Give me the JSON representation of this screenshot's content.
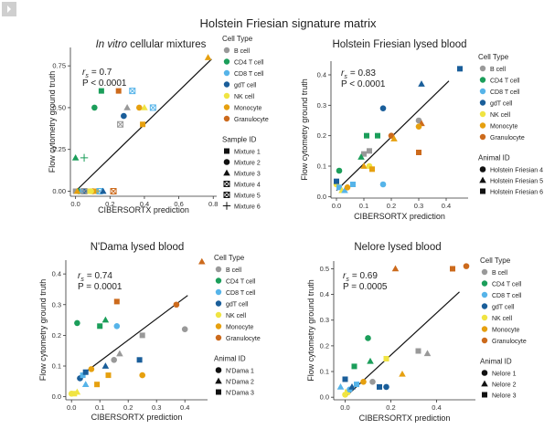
{
  "figure_title": "Holstein Friesian signature matrix",
  "legend_labels": {
    "cell_type": "Cell Type",
    "sample_id": "Sample ID",
    "animal_id": "Animal ID"
  },
  "cell_types": [
    {
      "name": "B cell",
      "color": "#999999"
    },
    {
      "name": "CD4 T cell",
      "color": "#1b9e5a"
    },
    {
      "name": "CD8 T cell",
      "color": "#56b4e9"
    },
    {
      "name": "gdT cell",
      "color": "#1a5e9a"
    },
    {
      "name": "NK cell",
      "color": "#f0e442"
    },
    {
      "name": "Monocyte",
      "color": "#e6a00f"
    },
    {
      "name": "Granulocyte",
      "color": "#cc6a1c"
    }
  ],
  "chart_data": [
    {
      "type": "scatter",
      "title": "In vitro cellular mixtures",
      "title_italic_part": "In vitro",
      "xlabel": "CIBERSORTX prediction",
      "ylabel": "Flow cytometry ground truth",
      "xlim": [
        -0.03,
        0.82
      ],
      "ylim": [
        -0.03,
        0.86
      ],
      "xticks": [
        0.0,
        0.2,
        0.4,
        0.6,
        0.8
      ],
      "xticklabels": [
        "0.0",
        "0.2",
        "0.4",
        "0.6",
        "0.8"
      ],
      "yticks": [
        0.0,
        0.25,
        0.5,
        0.75
      ],
      "yticklabels": [
        "0.00",
        "0.25",
        "0.50",
        "0.75"
      ],
      "stat_rs": "= 0.7",
      "stat_p": "P < 0.0001",
      "fit_line": [
        [
          0.0,
          0.0
        ],
        [
          0.79,
          0.79
        ]
      ],
      "shape_legend_title": "Sample ID",
      "shape_legend": [
        {
          "label": "Mixture 1",
          "shape": "square"
        },
        {
          "label": "Mixture 2",
          "shape": "circle"
        },
        {
          "label": "Mixture 3",
          "shape": "triangle"
        },
        {
          "label": "Mixture 4",
          "shape": "boxx"
        },
        {
          "label": "Mixture 5",
          "shape": "diamondsq"
        },
        {
          "label": "Mixture 6",
          "shape": "plus"
        }
      ],
      "points": [
        {
          "x": 0.0,
          "y": 0.0,
          "cell": "B cell",
          "shape": "square"
        },
        {
          "x": 0.02,
          "y": 0.0,
          "cell": "CD4 T cell",
          "shape": "circle"
        },
        {
          "x": 0.04,
          "y": 0.0,
          "cell": "CD8 T cell",
          "shape": "square"
        },
        {
          "x": 0.06,
          "y": 0.0,
          "cell": "gdT cell",
          "shape": "circle"
        },
        {
          "x": 0.08,
          "y": 0.0,
          "cell": "NK cell",
          "shape": "square"
        },
        {
          "x": 0.1,
          "y": 0.0,
          "cell": "Granulocyte",
          "shape": "circle"
        },
        {
          "x": 0.12,
          "y": 0.0,
          "cell": "Monocyte",
          "shape": "square"
        },
        {
          "x": 0.14,
          "y": 0.0,
          "cell": "CD8 T cell",
          "shape": "boxx"
        },
        {
          "x": 0.16,
          "y": 0.0,
          "cell": "gdT cell",
          "shape": "triangle"
        },
        {
          "x": 0.01,
          "y": 0.0,
          "cell": "Monocyte",
          "shape": "triangle"
        },
        {
          "x": 0.05,
          "y": 0.0,
          "cell": "B cell",
          "shape": "diamondsq"
        },
        {
          "x": 0.09,
          "y": 0.0,
          "cell": "NK cell",
          "shape": "circle"
        },
        {
          "x": 0.22,
          "y": 0.0,
          "cell": "Granulocyte",
          "shape": "boxx"
        },
        {
          "x": 0.0,
          "y": 0.2,
          "cell": "CD4 T cell",
          "shape": "triangle"
        },
        {
          "x": 0.05,
          "y": 0.2,
          "cell": "CD4 T cell",
          "shape": "plus"
        },
        {
          "x": 0.11,
          "y": 0.5,
          "cell": "CD4 T cell",
          "shape": "circle"
        },
        {
          "x": 0.15,
          "y": 0.6,
          "cell": "CD4 T cell",
          "shape": "square"
        },
        {
          "x": 0.25,
          "y": 0.6,
          "cell": "Granulocyte",
          "shape": "square"
        },
        {
          "x": 0.33,
          "y": 0.6,
          "cell": "CD8 T cell",
          "shape": "boxx"
        },
        {
          "x": 0.28,
          "y": 0.45,
          "cell": "gdT cell",
          "shape": "circle"
        },
        {
          "x": 0.3,
          "y": 0.5,
          "cell": "B cell",
          "shape": "triangle"
        },
        {
          "x": 0.37,
          "y": 0.5,
          "cell": "Monocyte",
          "shape": "circle"
        },
        {
          "x": 0.4,
          "y": 0.5,
          "cell": "NK cell",
          "shape": "triangle"
        },
        {
          "x": 0.45,
          "y": 0.5,
          "cell": "CD8 T cell",
          "shape": "diamondsq"
        },
        {
          "x": 0.26,
          "y": 0.4,
          "cell": "B cell",
          "shape": "boxx"
        },
        {
          "x": 0.39,
          "y": 0.4,
          "cell": "Monocyte",
          "shape": "square"
        },
        {
          "x": 0.77,
          "y": 0.8,
          "cell": "Monocyte",
          "shape": "triangle"
        }
      ]
    },
    {
      "type": "scatter",
      "title": "Holstein Friesian lysed blood",
      "xlabel": "CIBERSORTX prediction",
      "ylabel": "Flow cytometry ground truth",
      "xlim": [
        -0.02,
        0.48
      ],
      "ylim": [
        -0.005,
        0.445
      ],
      "xticks": [
        0.0,
        0.1,
        0.2,
        0.3,
        0.4
      ],
      "xticklabels": [
        "0.0",
        "0.1",
        "0.2",
        "0.3",
        "0.4"
      ],
      "yticks": [
        0.0,
        0.1,
        0.2,
        0.3,
        0.4
      ],
      "yticklabels": [
        "0.0",
        "0.1",
        "0.2",
        "0.3",
        "0.4"
      ],
      "stat_rs": "= 0.83",
      "stat_p": "P < 0.0001",
      "fit_line": [
        [
          0.0,
          0.02
        ],
        [
          0.41,
          0.38
        ]
      ],
      "shape_legend_title": "Animal ID",
      "shape_legend": [
        {
          "label": "Holstein Friesian 4",
          "shape": "circle"
        },
        {
          "label": "Holstein Friesian 5",
          "shape": "triangle"
        },
        {
          "label": "Holstein Friesian 6",
          "shape": "square"
        }
      ],
      "points": [
        {
          "x": 0.0,
          "y": 0.04,
          "cell": "NK cell",
          "shape": "circle"
        },
        {
          "x": 0.01,
          "y": 0.03,
          "cell": "CD8 T cell",
          "shape": "square"
        },
        {
          "x": 0.02,
          "y": 0.02,
          "cell": "NK cell",
          "shape": "triangle"
        },
        {
          "x": 0.0,
          "y": 0.05,
          "cell": "gdT cell",
          "shape": "square"
        },
        {
          "x": 0.01,
          "y": 0.085,
          "cell": "CD4 T cell",
          "shape": "circle"
        },
        {
          "x": 0.03,
          "y": 0.02,
          "cell": "CD8 T cell",
          "shape": "triangle"
        },
        {
          "x": 0.04,
          "y": 0.03,
          "cell": "Monocyte",
          "shape": "circle"
        },
        {
          "x": 0.06,
          "y": 0.04,
          "cell": "CD8 T cell",
          "shape": "square"
        },
        {
          "x": 0.1,
          "y": 0.14,
          "cell": "B cell",
          "shape": "square"
        },
        {
          "x": 0.11,
          "y": 0.2,
          "cell": "CD4 T cell",
          "shape": "square"
        },
        {
          "x": 0.12,
          "y": 0.15,
          "cell": "B cell",
          "shape": "square"
        },
        {
          "x": 0.09,
          "y": 0.13,
          "cell": "CD4 T cell",
          "shape": "triangle"
        },
        {
          "x": 0.1,
          "y": 0.1,
          "cell": "Monocyte",
          "shape": "triangle"
        },
        {
          "x": 0.12,
          "y": 0.1,
          "cell": "NK cell",
          "shape": "circle"
        },
        {
          "x": 0.13,
          "y": 0.09,
          "cell": "Monocyte",
          "shape": "square"
        },
        {
          "x": 0.15,
          "y": 0.2,
          "cell": "CD4 T cell",
          "shape": "square"
        },
        {
          "x": 0.17,
          "y": 0.29,
          "cell": "gdT cell",
          "shape": "circle"
        },
        {
          "x": 0.17,
          "y": 0.04,
          "cell": "CD8 T cell",
          "shape": "circle"
        },
        {
          "x": 0.2,
          "y": 0.2,
          "cell": "Granulocyte",
          "shape": "circle"
        },
        {
          "x": 0.21,
          "y": 0.19,
          "cell": "Monocyte",
          "shape": "triangle"
        },
        {
          "x": 0.3,
          "y": 0.25,
          "cell": "B cell",
          "shape": "circle"
        },
        {
          "x": 0.31,
          "y": 0.24,
          "cell": "Granulocyte",
          "shape": "triangle"
        },
        {
          "x": 0.3,
          "y": 0.23,
          "cell": "Monocyte",
          "shape": "circle"
        },
        {
          "x": 0.3,
          "y": 0.145,
          "cell": "Granulocyte",
          "shape": "square"
        },
        {
          "x": 0.31,
          "y": 0.37,
          "cell": "gdT cell",
          "shape": "triangle"
        },
        {
          "x": 0.45,
          "y": 0.42,
          "cell": "gdT cell",
          "shape": "square"
        }
      ]
    },
    {
      "type": "scatter",
      "title": "N'Dama lysed blood",
      "xlabel": "CIBERSORTX prediction",
      "ylabel": "Flow cytometry ground truth",
      "xlim": [
        -0.02,
        0.48
      ],
      "ylim": [
        -0.01,
        0.445
      ],
      "xticks": [
        0.0,
        0.1,
        0.2,
        0.3,
        0.4
      ],
      "xticklabels": [
        "0.0",
        "0.1",
        "0.2",
        "0.3",
        "0.4"
      ],
      "yticks": [
        0.0,
        0.1,
        0.2,
        0.3,
        0.4
      ],
      "yticklabels": [
        "0.0",
        "0.1",
        "0.2",
        "0.3",
        "0.4"
      ],
      "stat_rs": "= 0.74",
      "stat_p": "P = 0.0001",
      "fit_line": [
        [
          0.02,
          0.06
        ],
        [
          0.41,
          0.33
        ]
      ],
      "shape_legend_title": "Animal ID",
      "shape_legend": [
        {
          "label": "N'Dama 1",
          "shape": "circle"
        },
        {
          "label": "N'Dama 2",
          "shape": "triangle"
        },
        {
          "label": "N'Dama 3",
          "shape": "square"
        }
      ],
      "points": [
        {
          "x": 0.0,
          "y": 0.01,
          "cell": "NK cell",
          "shape": "circle"
        },
        {
          "x": 0.01,
          "y": 0.01,
          "cell": "NK cell",
          "shape": "square"
        },
        {
          "x": 0.02,
          "y": 0.015,
          "cell": "NK cell",
          "shape": "triangle"
        },
        {
          "x": 0.02,
          "y": 0.24,
          "cell": "CD4 T cell",
          "shape": "circle"
        },
        {
          "x": 0.03,
          "y": 0.06,
          "cell": "gdT cell",
          "shape": "circle"
        },
        {
          "x": 0.04,
          "y": 0.07,
          "cell": "CD8 T cell",
          "shape": "square"
        },
        {
          "x": 0.05,
          "y": 0.04,
          "cell": "CD8 T cell",
          "shape": "triangle"
        },
        {
          "x": 0.05,
          "y": 0.08,
          "cell": "gdT cell",
          "shape": "square"
        },
        {
          "x": 0.07,
          "y": 0.09,
          "cell": "Monocyte",
          "shape": "circle"
        },
        {
          "x": 0.09,
          "y": 0.04,
          "cell": "Monocyte",
          "shape": "square"
        },
        {
          "x": 0.1,
          "y": 0.23,
          "cell": "CD4 T cell",
          "shape": "square"
        },
        {
          "x": 0.12,
          "y": 0.25,
          "cell": "CD4 T cell",
          "shape": "triangle"
        },
        {
          "x": 0.12,
          "y": 0.1,
          "cell": "gdT cell",
          "shape": "triangle"
        },
        {
          "x": 0.13,
          "y": 0.07,
          "cell": "Monocyte",
          "shape": "square"
        },
        {
          "x": 0.15,
          "y": 0.12,
          "cell": "B cell",
          "shape": "circle"
        },
        {
          "x": 0.16,
          "y": 0.31,
          "cell": "Granulocyte",
          "shape": "square"
        },
        {
          "x": 0.16,
          "y": 0.23,
          "cell": "CD8 T cell",
          "shape": "circle"
        },
        {
          "x": 0.17,
          "y": 0.14,
          "cell": "B cell",
          "shape": "triangle"
        },
        {
          "x": 0.24,
          "y": 0.12,
          "cell": "gdT cell",
          "shape": "square"
        },
        {
          "x": 0.25,
          "y": 0.2,
          "cell": "B cell",
          "shape": "square"
        },
        {
          "x": 0.25,
          "y": 0.07,
          "cell": "Monocyte",
          "shape": "circle"
        },
        {
          "x": 0.37,
          "y": 0.3,
          "cell": "Granulocyte",
          "shape": "circle"
        },
        {
          "x": 0.4,
          "y": 0.22,
          "cell": "B cell",
          "shape": "circle"
        },
        {
          "x": 0.46,
          "y": 0.44,
          "cell": "Granulocyte",
          "shape": "triangle"
        }
      ]
    },
    {
      "type": "scatter",
      "title": "Nelore lysed blood",
      "xlabel": "CIBERSORTX prediction",
      "ylabel": "Flow cytometry ground truth",
      "xlim": [
        -0.05,
        0.57
      ],
      "ylim": [
        -0.01,
        0.53
      ],
      "xticks": [
        0.0,
        0.2,
        0.4
      ],
      "xticklabels": [
        "0.0",
        "0.2",
        "0.4"
      ],
      "yticks": [
        0.0,
        0.1,
        0.2,
        0.3,
        0.4,
        0.5
      ],
      "yticklabels": [
        "0.0",
        "0.1",
        "0.2",
        "0.3",
        "0.4",
        "0.5"
      ],
      "stat_rs": "= 0.69",
      "stat_p": "P = 0.0005",
      "fit_line": [
        [
          0.0,
          0.0
        ],
        [
          0.5,
          0.41
        ]
      ],
      "shape_legend_title": "Animal ID",
      "shape_legend": [
        {
          "label": "Nelore 1",
          "shape": "circle"
        },
        {
          "label": "Nelore 2",
          "shape": "triangle"
        },
        {
          "label": "Nelore 3",
          "shape": "square"
        }
      ],
      "points": [
        {
          "x": -0.02,
          "y": 0.04,
          "cell": "CD8 T cell",
          "shape": "triangle"
        },
        {
          "x": 0.0,
          "y": 0.07,
          "cell": "gdT cell",
          "shape": "square"
        },
        {
          "x": 0.0,
          "y": 0.01,
          "cell": "NK cell",
          "shape": "circle"
        },
        {
          "x": 0.01,
          "y": 0.02,
          "cell": "NK cell",
          "shape": "square"
        },
        {
          "x": 0.02,
          "y": 0.03,
          "cell": "CD8 T cell",
          "shape": "circle"
        },
        {
          "x": 0.03,
          "y": 0.04,
          "cell": "gdT cell",
          "shape": "triangle"
        },
        {
          "x": 0.04,
          "y": 0.12,
          "cell": "CD4 T cell",
          "shape": "square"
        },
        {
          "x": 0.05,
          "y": 0.05,
          "cell": "CD8 T cell",
          "shape": "square"
        },
        {
          "x": 0.08,
          "y": 0.06,
          "cell": "Monocyte",
          "shape": "circle"
        },
        {
          "x": 0.1,
          "y": 0.23,
          "cell": "CD4 T cell",
          "shape": "circle"
        },
        {
          "x": 0.11,
          "y": 0.14,
          "cell": "CD4 T cell",
          "shape": "triangle"
        },
        {
          "x": 0.12,
          "y": 0.06,
          "cell": "B cell",
          "shape": "circle"
        },
        {
          "x": 0.15,
          "y": 0.04,
          "cell": "gdT cell",
          "shape": "square"
        },
        {
          "x": 0.18,
          "y": 0.04,
          "cell": "gdT cell",
          "shape": "circle"
        },
        {
          "x": 0.18,
          "y": 0.15,
          "cell": "NK cell",
          "shape": "square"
        },
        {
          "x": 0.22,
          "y": 0.5,
          "cell": "Granulocyte",
          "shape": "triangle"
        },
        {
          "x": 0.25,
          "y": 0.09,
          "cell": "Monocyte",
          "shape": "triangle"
        },
        {
          "x": 0.32,
          "y": 0.18,
          "cell": "B cell",
          "shape": "square"
        },
        {
          "x": 0.36,
          "y": 0.17,
          "cell": "B cell",
          "shape": "triangle"
        },
        {
          "x": 0.47,
          "y": 0.5,
          "cell": "Granulocyte",
          "shape": "square"
        },
        {
          "x": 0.53,
          "y": 0.51,
          "cell": "Granulocyte",
          "shape": "circle"
        }
      ]
    }
  ]
}
